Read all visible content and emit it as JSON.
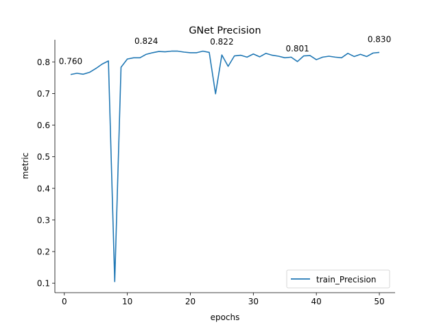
{
  "chart_data": {
    "type": "line",
    "title": "GNet Precision",
    "xlabel": "epochs",
    "ylabel": "metric",
    "xlim": [
      -1.5,
      52.5
    ],
    "ylim": [
      0.07,
      0.87
    ],
    "xticks": [
      0,
      10,
      20,
      30,
      40,
      50
    ],
    "yticks": [
      0.1,
      0.2,
      0.3,
      0.4,
      0.5,
      0.6,
      0.7,
      0.8
    ],
    "grid": false,
    "legend_position": "lower right",
    "series": [
      {
        "name": "train_Precision",
        "color": "#1f77b4",
        "x": [
          1,
          2,
          3,
          4,
          5,
          6,
          7,
          8,
          9,
          10,
          11,
          12,
          13,
          14,
          15,
          16,
          17,
          18,
          19,
          20,
          21,
          22,
          23,
          24,
          25,
          26,
          27,
          28,
          29,
          30,
          31,
          32,
          33,
          34,
          35,
          36,
          37,
          38,
          39,
          40,
          41,
          42,
          43,
          44,
          45,
          46,
          47,
          48,
          49,
          50
        ],
        "values": [
          0.76,
          0.764,
          0.761,
          0.767,
          0.779,
          0.793,
          0.803,
          0.105,
          0.783,
          0.809,
          0.813,
          0.813,
          0.824,
          0.829,
          0.833,
          0.832,
          0.834,
          0.834,
          0.831,
          0.829,
          0.829,
          0.834,
          0.83,
          0.699,
          0.822,
          0.786,
          0.819,
          0.821,
          0.815,
          0.825,
          0.816,
          0.827,
          0.821,
          0.818,
          0.813,
          0.815,
          0.801,
          0.819,
          0.82,
          0.807,
          0.815,
          0.818,
          0.815,
          0.813,
          0.827,
          0.817,
          0.824,
          0.817,
          0.828,
          0.83
        ]
      }
    ],
    "annotations": [
      {
        "x": 1,
        "y": 0.76,
        "text": "0.760"
      },
      {
        "x": 13,
        "y": 0.824,
        "text": "0.824"
      },
      {
        "x": 25,
        "y": 0.822,
        "text": "0.822"
      },
      {
        "x": 37,
        "y": 0.801,
        "text": "0.801"
      },
      {
        "x": 50,
        "y": 0.83,
        "text": "0.830"
      }
    ]
  }
}
